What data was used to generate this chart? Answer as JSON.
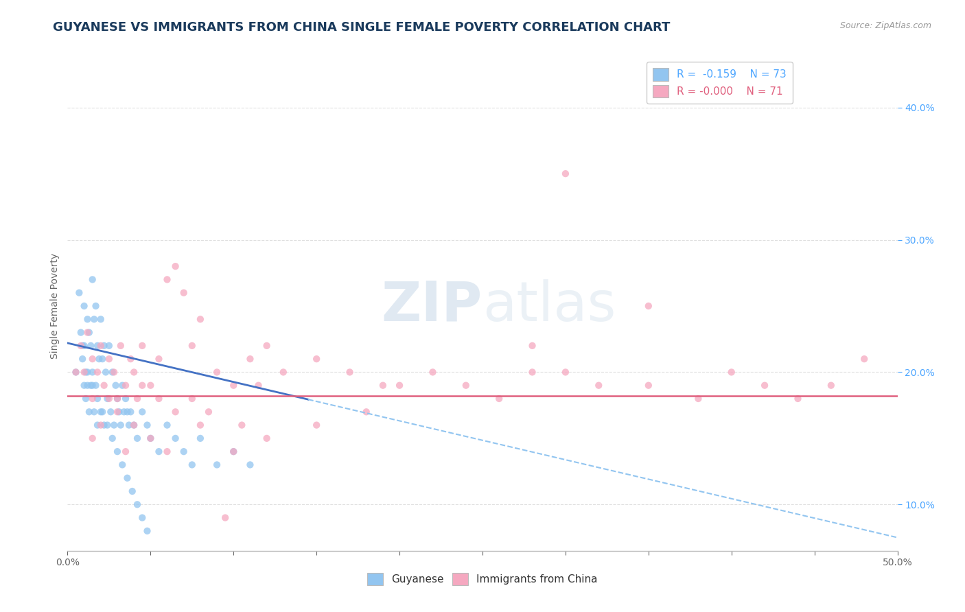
{
  "title": "GUYANESE VS IMMIGRANTS FROM CHINA SINGLE FEMALE POVERTY CORRELATION CHART",
  "source": "Source: ZipAtlas.com",
  "ylabel": "Single Female Poverty",
  "xlim": [
    0.0,
    0.5
  ],
  "ylim": [
    0.065,
    0.435
  ],
  "yticks": [
    0.1,
    0.2,
    0.3,
    0.4
  ],
  "ytick_labels": [
    "10.0%",
    "20.0%",
    "30.0%",
    "40.0%"
  ],
  "xticks": [
    0.0,
    0.05,
    0.1,
    0.15,
    0.2,
    0.25,
    0.3,
    0.35,
    0.4,
    0.45,
    0.5
  ],
  "xtick_labels": [
    "0.0%",
    "",
    "",
    "",
    "",
    "",
    "",
    "",
    "",
    "",
    "50.0%"
  ],
  "title_color": "#1a3a5c",
  "axis_color": "#666666",
  "legend_R1": "R =  -0.159",
  "legend_N1": "N = 73",
  "legend_R2": "R = -0.000",
  "legend_N2": "N = 71",
  "series1_color": "#92C5F0",
  "series2_color": "#F5A8C0",
  "series1_label": "Guyanese",
  "series2_label": "Immigrants from China",
  "trend1_solid_color": "#4472C4",
  "trend1_dash_color": "#92C5F0",
  "trend2_color": "#E0607E",
  "background_color": "#FFFFFF",
  "grid_color": "#E0E0E0",
  "right_ytick_color": "#4da6ff",
  "title_fontsize": 13,
  "label_fontsize": 10,
  "tick_fontsize": 10,
  "guyanese_x": [
    0.005,
    0.007,
    0.008,
    0.009,
    0.009,
    0.01,
    0.01,
    0.01,
    0.011,
    0.011,
    0.012,
    0.012,
    0.013,
    0.013,
    0.014,
    0.014,
    0.015,
    0.015,
    0.016,
    0.016,
    0.017,
    0.017,
    0.018,
    0.018,
    0.019,
    0.02,
    0.02,
    0.021,
    0.022,
    0.022,
    0.023,
    0.024,
    0.025,
    0.026,
    0.027,
    0.028,
    0.029,
    0.03,
    0.031,
    0.032,
    0.033,
    0.034,
    0.035,
    0.036,
    0.037,
    0.038,
    0.04,
    0.042,
    0.045,
    0.048,
    0.05,
    0.055,
    0.06,
    0.065,
    0.07,
    0.075,
    0.08,
    0.09,
    0.1,
    0.11,
    0.012,
    0.015,
    0.018,
    0.021,
    0.024,
    0.027,
    0.03,
    0.033,
    0.036,
    0.039,
    0.042,
    0.045,
    0.048
  ],
  "guyanese_y": [
    0.2,
    0.26,
    0.23,
    0.21,
    0.22,
    0.25,
    0.22,
    0.19,
    0.2,
    0.18,
    0.24,
    0.19,
    0.23,
    0.17,
    0.22,
    0.19,
    0.27,
    0.2,
    0.24,
    0.17,
    0.25,
    0.19,
    0.22,
    0.16,
    0.21,
    0.24,
    0.17,
    0.21,
    0.22,
    0.16,
    0.2,
    0.18,
    0.22,
    0.17,
    0.2,
    0.16,
    0.19,
    0.18,
    0.17,
    0.16,
    0.19,
    0.17,
    0.18,
    0.17,
    0.16,
    0.17,
    0.16,
    0.15,
    0.17,
    0.16,
    0.15,
    0.14,
    0.16,
    0.15,
    0.14,
    0.13,
    0.15,
    0.13,
    0.14,
    0.13,
    0.2,
    0.19,
    0.18,
    0.17,
    0.16,
    0.15,
    0.14,
    0.13,
    0.12,
    0.11,
    0.1,
    0.09,
    0.08
  ],
  "china_x": [
    0.005,
    0.008,
    0.01,
    0.012,
    0.015,
    0.015,
    0.018,
    0.02,
    0.022,
    0.025,
    0.028,
    0.03,
    0.032,
    0.035,
    0.038,
    0.04,
    0.042,
    0.045,
    0.05,
    0.055,
    0.06,
    0.065,
    0.07,
    0.075,
    0.08,
    0.09,
    0.1,
    0.11,
    0.12,
    0.13,
    0.15,
    0.17,
    0.19,
    0.22,
    0.24,
    0.26,
    0.28,
    0.3,
    0.32,
    0.35,
    0.38,
    0.4,
    0.42,
    0.44,
    0.46,
    0.48,
    0.3,
    0.35,
    0.28,
    0.2,
    0.18,
    0.15,
    0.12,
    0.1,
    0.08,
    0.06,
    0.05,
    0.04,
    0.035,
    0.03,
    0.025,
    0.02,
    0.015,
    0.045,
    0.055,
    0.065,
    0.075,
    0.085,
    0.095,
    0.105,
    0.115
  ],
  "china_y": [
    0.2,
    0.22,
    0.2,
    0.23,
    0.21,
    0.18,
    0.2,
    0.22,
    0.19,
    0.21,
    0.2,
    0.18,
    0.22,
    0.19,
    0.21,
    0.2,
    0.18,
    0.22,
    0.19,
    0.21,
    0.27,
    0.28,
    0.26,
    0.22,
    0.24,
    0.2,
    0.19,
    0.21,
    0.22,
    0.2,
    0.21,
    0.2,
    0.19,
    0.2,
    0.19,
    0.18,
    0.22,
    0.2,
    0.19,
    0.19,
    0.18,
    0.2,
    0.19,
    0.18,
    0.19,
    0.21,
    0.35,
    0.25,
    0.2,
    0.19,
    0.17,
    0.16,
    0.15,
    0.14,
    0.16,
    0.14,
    0.15,
    0.16,
    0.14,
    0.17,
    0.18,
    0.16,
    0.15,
    0.19,
    0.18,
    0.17,
    0.18,
    0.17,
    0.09,
    0.16,
    0.19
  ],
  "trend1_x0": 0.0,
  "trend1_y0": 0.222,
  "trend1_x1": 0.5,
  "trend1_y1": 0.075,
  "trend1_solid_end": 0.145,
  "trend2_y": 0.182
}
